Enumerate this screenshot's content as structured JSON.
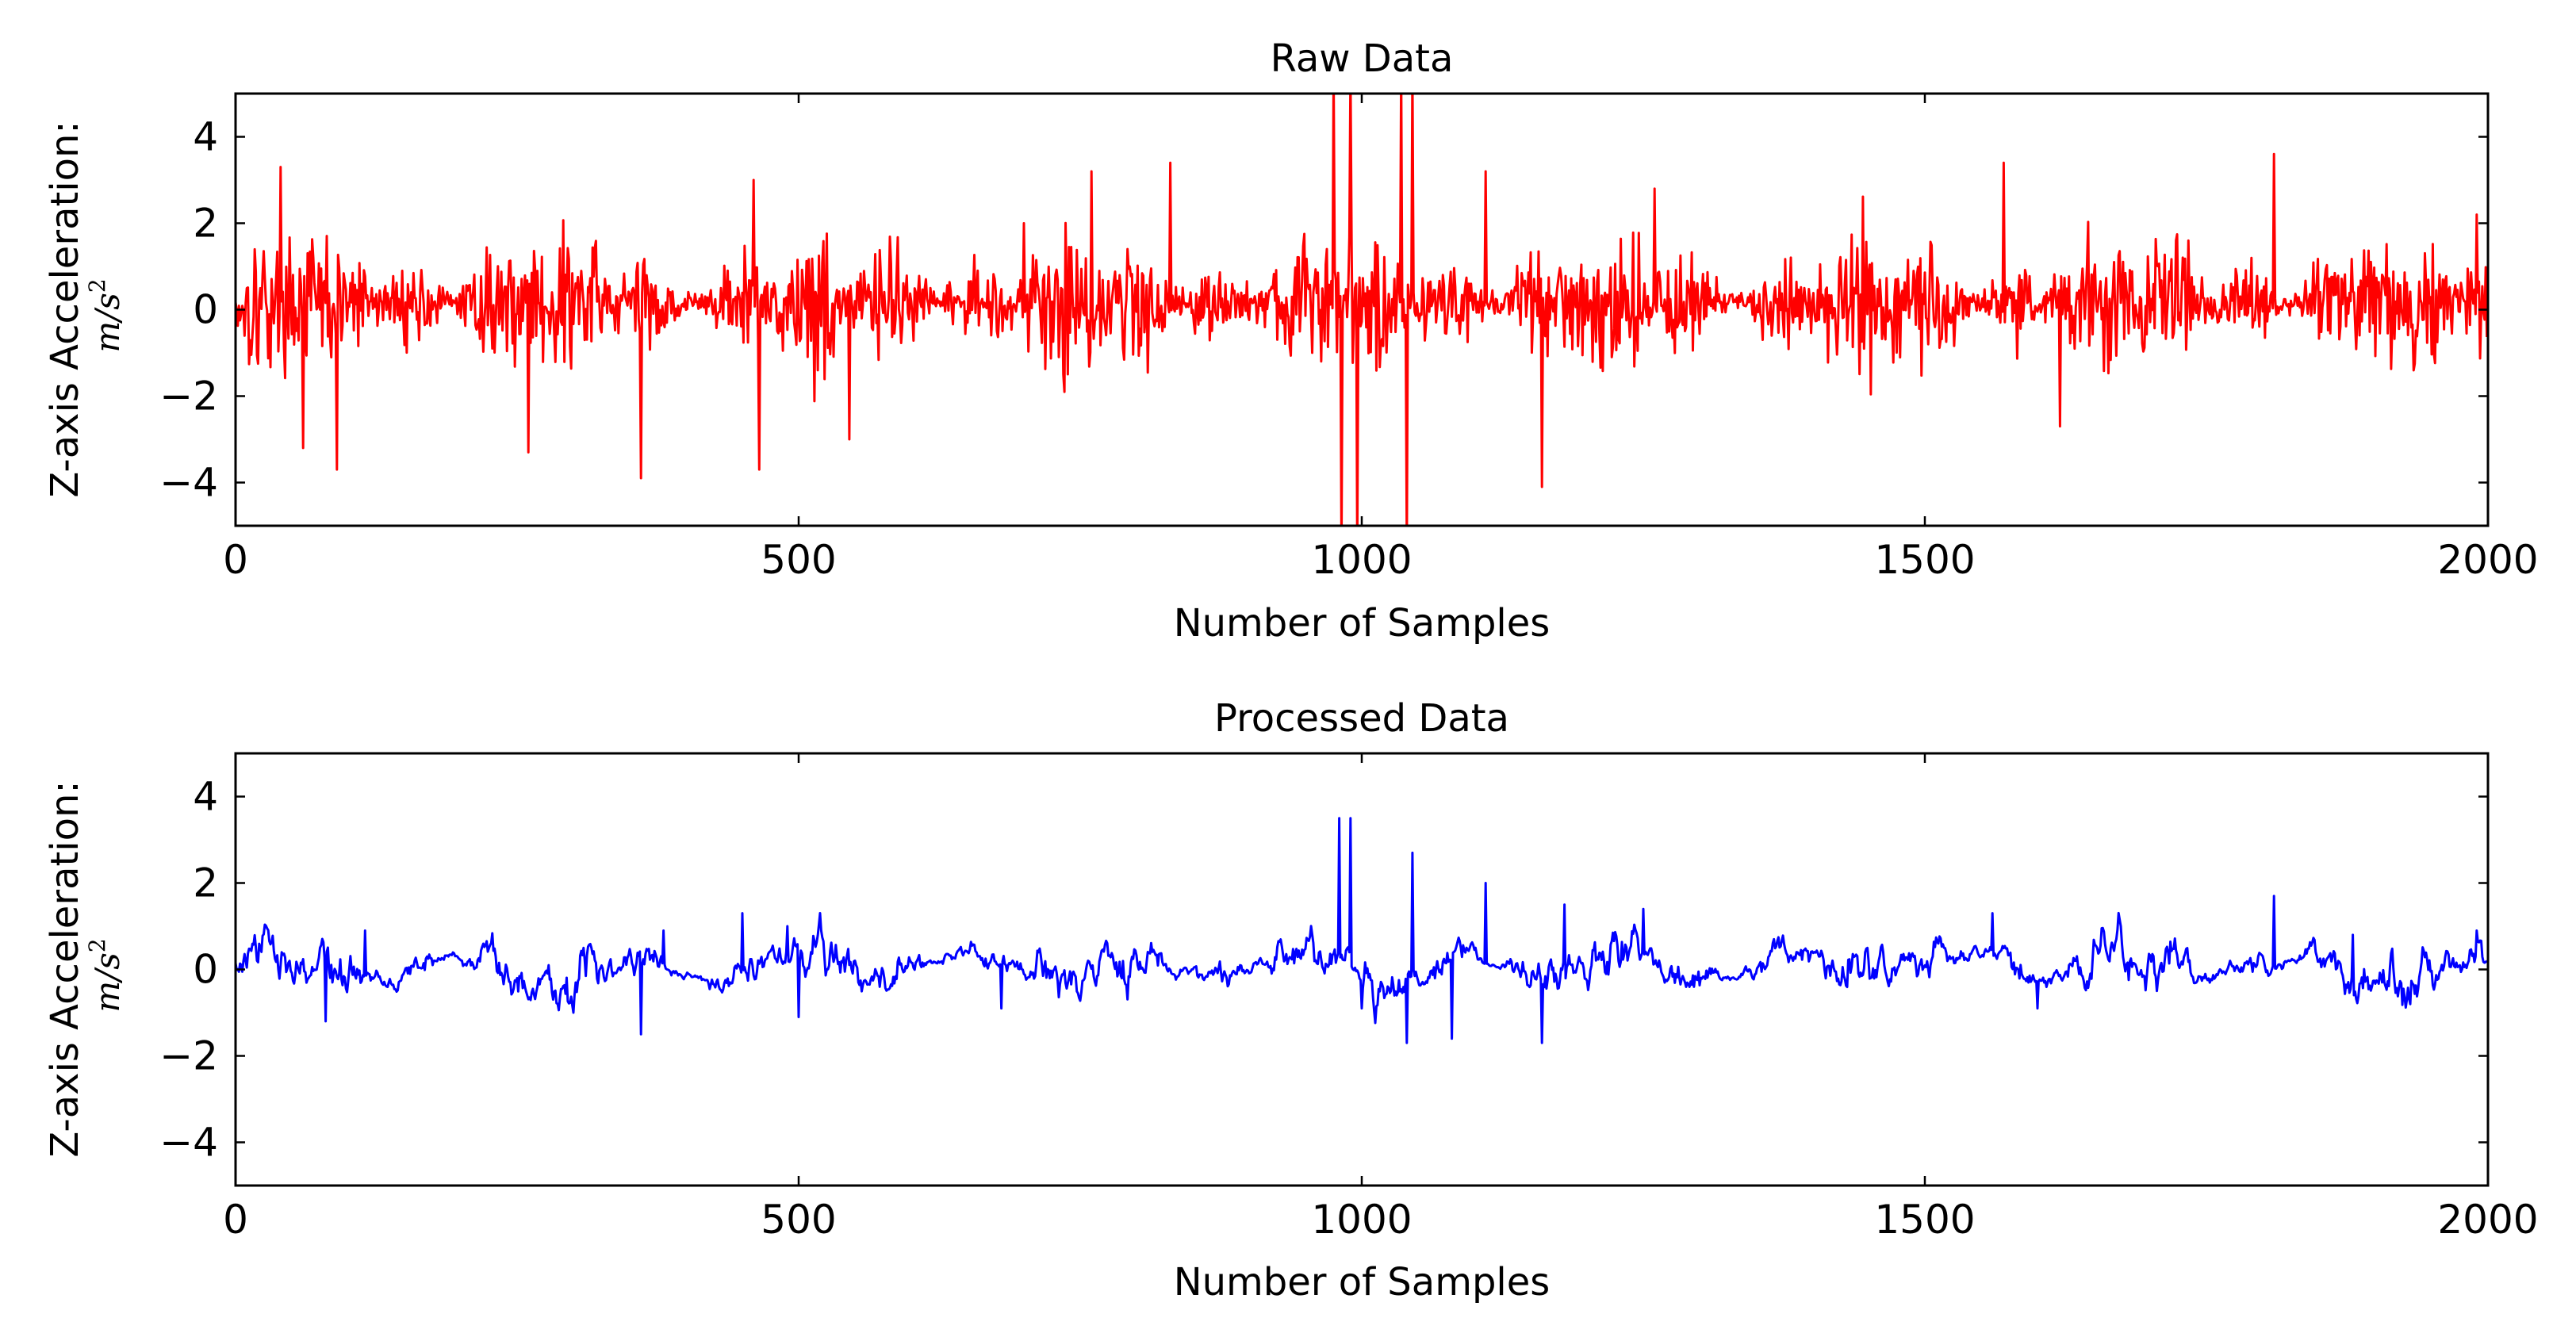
{
  "chart_data": [
    {
      "type": "line",
      "title": "Raw Data",
      "xlabel": "Number of Samples",
      "ylabel": "Z-axis Acceleration:",
      "ylabel_unit": "m/s",
      "ylabel_unit_exponent": "2",
      "xlim": [
        0,
        2000
      ],
      "ylim": [
        -5,
        5
      ],
      "xticks": [
        0,
        500,
        1000,
        1500,
        2000
      ],
      "xtick_labels": [
        "0",
        "500",
        "1000",
        "1500",
        "2000"
      ],
      "yticks": [
        4,
        2,
        0,
        -2,
        -4
      ],
      "ytick_labels": [
        "4",
        "2",
        "0",
        "−2",
        "−4"
      ],
      "grid": false,
      "color": "#ff0000",
      "samples": 2000,
      "noise_amplitude": 1.0,
      "annotations_description": "Noisy red signal fluctuating mostly between -2 and 2, peaks near 3.3 at x=50, -3.9 at x=360, 3.5 at x=1810; large spikes exceeding the +/-5 limits near x=980-990 and x=1040.",
      "series": [
        {
          "name": "Raw Data",
          "color": "#ff0000",
          "features": [
            {
              "x": 40,
              "y": 3.3
            },
            {
              "x": 60,
              "y": -3.2
            },
            {
              "x": 90,
              "y": -3.7
            },
            {
              "x": 260,
              "y": -3.3
            },
            {
              "x": 360,
              "y": -3.9
            },
            {
              "x": 460,
              "y": 3.0
            },
            {
              "x": 465,
              "y": -3.7
            },
            {
              "x": 545,
              "y": -3.0
            },
            {
              "x": 700,
              "y": 2.0
            },
            {
              "x": 760,
              "y": 3.2
            },
            {
              "x": 830,
              "y": 3.4
            },
            {
              "x": 975,
              "y": 5.5
            },
            {
              "x": 982,
              "y": -5.5
            },
            {
              "x": 990,
              "y": 5.5
            },
            {
              "x": 996,
              "y": -5.5
            },
            {
              "x": 1035,
              "y": 5.5
            },
            {
              "x": 1040,
              "y": -5.5
            },
            {
              "x": 1045,
              "y": 5.5
            },
            {
              "x": 1110,
              "y": 3.2
            },
            {
              "x": 1160,
              "y": -4.1
            },
            {
              "x": 1260,
              "y": 2.8
            },
            {
              "x": 1570,
              "y": 3.4
            },
            {
              "x": 1620,
              "y": -2.7
            },
            {
              "x": 1810,
              "y": 3.6
            },
            {
              "x": 1990,
              "y": 2.2
            }
          ]
        }
      ]
    },
    {
      "type": "line",
      "title": "Processed Data",
      "xlabel": "Number of Samples",
      "ylabel": "Z-axis Acceleration:",
      "ylabel_unit": "m/s",
      "ylabel_unit_exponent": "2",
      "xlim": [
        0,
        2000
      ],
      "ylim": [
        -5,
        5
      ],
      "xticks": [
        0,
        500,
        1000,
        1500,
        2000
      ],
      "xtick_labels": [
        "0",
        "500",
        "1000",
        "1500",
        "2000"
      ],
      "yticks": [
        4,
        2,
        0,
        -2,
        -4
      ],
      "ytick_labels": [
        "4",
        "2",
        "0",
        "−2",
        "−4"
      ],
      "grid": false,
      "color": "#0000ff",
      "samples": 2000,
      "noise_amplitude": 0.25,
      "annotations_description": "Smoothed blue signal mostly between -1 and 1, spikes to about 3.5 near x=985, 2.7 near x=1040, -1.7 near x=1040 and x=1160.",
      "series": [
        {
          "name": "Processed Data",
          "color": "#0000ff",
          "features": [
            {
              "x": 80,
              "y": -1.2
            },
            {
              "x": 115,
              "y": 0.9
            },
            {
              "x": 300,
              "y": -1.0
            },
            {
              "x": 360,
              "y": -1.5
            },
            {
              "x": 380,
              "y": 0.9
            },
            {
              "x": 450,
              "y": 1.3
            },
            {
              "x": 490,
              "y": 1.0
            },
            {
              "x": 500,
              "y": -1.1
            },
            {
              "x": 680,
              "y": -0.9
            },
            {
              "x": 980,
              "y": 3.5
            },
            {
              "x": 990,
              "y": 3.5
            },
            {
              "x": 1000,
              "y": -0.9
            },
            {
              "x": 1040,
              "y": -1.7
            },
            {
              "x": 1045,
              "y": 2.7
            },
            {
              "x": 1080,
              "y": -1.6
            },
            {
              "x": 1110,
              "y": 2.0
            },
            {
              "x": 1160,
              "y": -1.7
            },
            {
              "x": 1180,
              "y": 1.5
            },
            {
              "x": 1250,
              "y": 1.4
            },
            {
              "x": 1560,
              "y": 1.3
            },
            {
              "x": 1600,
              "y": -0.9
            },
            {
              "x": 1810,
              "y": 1.7
            },
            {
              "x": 1880,
              "y": 0.8
            },
            {
              "x": 1990,
              "y": 0.9
            }
          ]
        }
      ]
    }
  ]
}
